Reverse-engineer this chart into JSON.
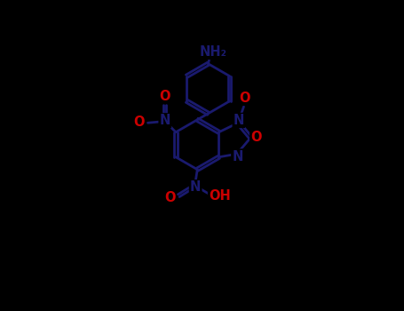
{
  "background_color": "#000000",
  "bond_color": "#1a1a6e",
  "N_color": "#1a1a6e",
  "O_color": "#cc0000",
  "figsize": [
    4.55,
    3.5
  ],
  "dpi": 100,
  "xlim": [
    0,
    10
  ],
  "ylim": [
    0,
    10
  ]
}
